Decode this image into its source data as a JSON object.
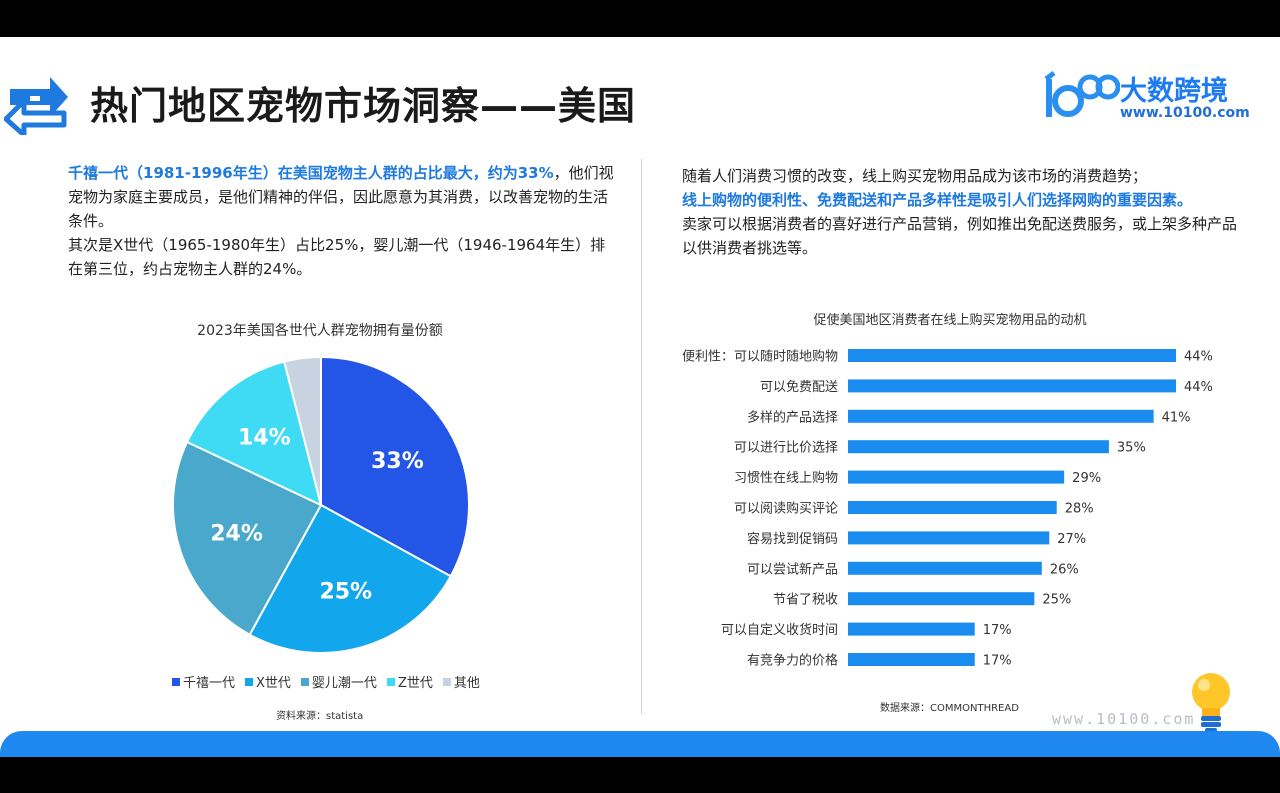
{
  "header": {
    "title": "热门地区宠物市场洞察——美国",
    "brand_name": "大数跨境",
    "brand_url": "www.10100.com"
  },
  "left": {
    "p1_highlight": "千禧一代（1981-1996年生）在美国宠物主人群的占比最大，约为33%",
    "p1_rest": "，他们视宠物为家庭主要成员，是他们精神的伴侣，因此愿意为其消费，以改善宠物的生活条件。",
    "p2": "其次是X世代（1965-1980年生）占比25%，婴儿潮一代（1946-1964年生）排在第三位，约占宠物主人群的24%。",
    "source": "资料来源：statista"
  },
  "right": {
    "p1": "随着人们消费习惯的改变，线上购买宠物用品成为该市场的消费趋势；",
    "p2_highlight": "线上购物的便利性、免费配送和产品多样性是吸引人们选择网购的重要因素。",
    "p3": "卖家可以根据消费者的喜好进行产品营销，例如推出免配送费服务，或上架多种产品以供消费者挑选等。",
    "source": "数据来源：COMMONTHREAD"
  },
  "watermark": "www.10100.com",
  "chart_data": [
    {
      "type": "pie",
      "title": "2023年美国各世代人群宠物拥有量份额",
      "categories": [
        "千禧一代",
        "X世代",
        "婴儿潮一代",
        "Z世代",
        "其他"
      ],
      "values": [
        33,
        25,
        24,
        14,
        4
      ],
      "data_labels": [
        "33%",
        "25%",
        "24%",
        "14%",
        ""
      ],
      "colors": [
        "#2355e6",
        "#12a6ec",
        "#4aa8cc",
        "#3fdaf4",
        "#c8d3e2"
      ],
      "legend": "bottom"
    },
    {
      "type": "bar",
      "orientation": "horizontal",
      "title": "促使美国地区消费者在线上购买宠物用品的动机",
      "categories": [
        "便利性：可以随时随地购物",
        "可以免费配送",
        "多样的产品选择",
        "可以进行比价选择",
        "习惯性在线上购物",
        "可以阅读购买评论",
        "容易找到促销码",
        "可以尝试新产品",
        "节省了税收",
        "可以自定义收货时间",
        "有竞争力的价格"
      ],
      "values": [
        44,
        44,
        41,
        35,
        29,
        28,
        27,
        26,
        25,
        17,
        17
      ],
      "data_labels": [
        "44%",
        "44%",
        "41%",
        "35%",
        "29%",
        "28%",
        "27%",
        "26%",
        "25%",
        "17%",
        "17%"
      ],
      "color": "#1a8cf0",
      "grid": false
    }
  ]
}
